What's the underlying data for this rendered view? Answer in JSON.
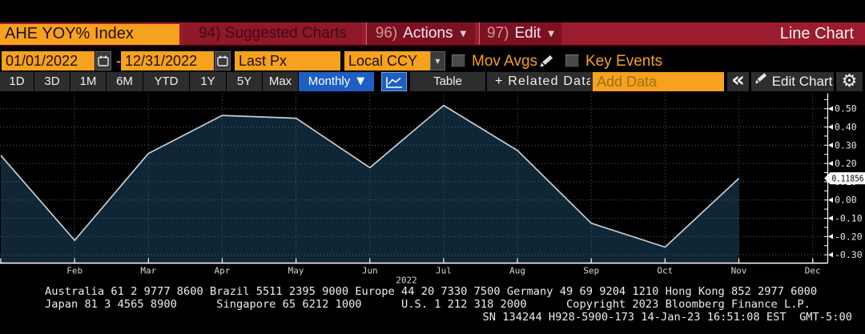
{
  "title_bar": {
    "security": "AHE YOY% Index",
    "suggested_charts": {
      "number": "94)",
      "label": "Suggested Charts"
    },
    "actions_menu": {
      "number": "96)",
      "label": "Actions",
      "caret": "▼"
    },
    "edit_menu": {
      "number": "97)",
      "label": "Edit",
      "caret": "▼"
    },
    "view_title": "Line Chart"
  },
  "controls": {
    "start_date": "01/01/2022",
    "date_separator": "-",
    "end_date": "12/31/2022",
    "price_field": "Last Px",
    "currency_field": "Local CCY",
    "mov_avgs_label": "Mov Avgs",
    "key_events_label": "Key Events",
    "mov_avgs_checked": false,
    "key_events_checked": false
  },
  "toolbar": {
    "range_buttons": [
      "1D",
      "3D",
      "1M",
      "6M",
      "YTD",
      "1Y",
      "5Y",
      "Max"
    ],
    "period_dropdown": "Monthly",
    "period_caret": "▼",
    "table_label": "Table",
    "related_data_label": "+ Related Data",
    "add_data_placeholder": "Add Data",
    "collapse_label": "«",
    "edit_chart_label": "Edit Chart"
  },
  "chart_data": {
    "type": "area",
    "title": "AHE YOY% Index",
    "period": "Monthly",
    "x": [
      "Jan 2022",
      "Feb 2022",
      "Mar 2022",
      "Apr 2022",
      "May 2022",
      "Jun 2022",
      "Jul 2022",
      "Aug 2022",
      "Sep 2022",
      "Oct 2022",
      "Nov 2022"
    ],
    "series": [
      {
        "name": "AHE YOY% Index - Last Px",
        "values": [
          0.244,
          -0.221,
          0.255,
          0.463,
          0.448,
          0.177,
          0.518,
          0.271,
          -0.127,
          -0.258,
          0.11856
        ]
      }
    ],
    "x_tick_labels": [
      "Feb",
      "Mar",
      "Apr",
      "May",
      "Jun",
      "Jul",
      "Aug",
      "Sep",
      "Oct",
      "Nov",
      "Dec"
    ],
    "year_label": "2022",
    "y_tick_labels": [
      "0.50",
      "0.40",
      "0.30",
      "0.20",
      "0.10",
      "0.00",
      "-0.10",
      "-0.20",
      "-0.30"
    ],
    "y_ticks": [
      0.5,
      0.4,
      0.3,
      0.2,
      0.1,
      0.0,
      -0.1,
      -0.2,
      -0.3
    ],
    "ylim": [
      -0.348,
      0.59
    ],
    "last_price_label": "0.11856",
    "last_price": 0.11856,
    "grid": "dotted",
    "legend_position": "none",
    "colors": {
      "fill": "#0e2636",
      "line": "#c9ced4",
      "grid": "#5a6068",
      "axis": "#ffffff",
      "tick_text": "#d8d8d8",
      "tag_bg": "#ffffff",
      "tag_text": "#000000"
    }
  },
  "footer": {
    "lines": [
      "Australia 61 2 9777 8600 Brazil 5511 2395 9000 Europe 44 20 7330 7500 Germany 49 69 9204 1210 Hong Kong 852 2977 6000",
      "Japan 81 3 4565 8900      Singapore 65 6212 1000      U.S. 1 212 318 2000      Copyright 2023 Bloomberg Finance L.P.",
      "SN 134244 H928-5900-173 14-Jan-23 16:51:08 EST  GMT-5:00"
    ]
  }
}
